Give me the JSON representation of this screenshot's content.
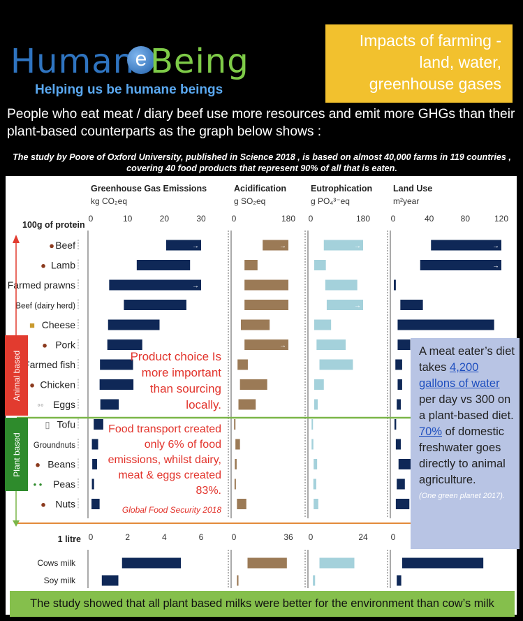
{
  "logo": {
    "word1": "Human",
    "letter": "e",
    "word2": "Being",
    "tagline": "Helping us be humane beings"
  },
  "title_box": {
    "line1": "Impacts of farming -",
    "line2": "land, water,",
    "line3": "greenhouse gases"
  },
  "intro": "People who eat meat / diary beef use more resources and emit more GHGs than their plant-based counterparts as the graph below shows :",
  "study": "The study by Poore  of Oxford University, published in Science 2018 , is based on almost 40,000 farms in 119 countries , covering 40 food products that represent 90% of all that is eaten.",
  "sides": {
    "animal": "Animal based",
    "plant": "Plant based"
  },
  "notes": {
    "product": "Product choice Is more important than sourcing locally.",
    "transport": "Food transport created only 6% of food  emissions, whilst dairy, meat & eggs created 83%.",
    "transport_source": "Global Food Security 2018"
  },
  "water_box": {
    "p1": "A meat eater’s diet takes ",
    "p1_link": "4,200 gallons of water",
    "p1_end": " per day vs 300 on a plant-based diet.",
    "p2_link": "70%",
    "p2_end": " of domestic freshwater goes directly to animal agriculture.",
    "source": "(One green planet 2017)."
  },
  "footer": "The study showed that all plant based milks were better for the environment than cow’s milk",
  "colors": {
    "ghg": "#0f2857",
    "acid": "#9b7a56",
    "eutro": "#a4d1db",
    "land": "#0f2857",
    "animal": "#e23b2f",
    "plant": "#2e8b2c",
    "title_box": "#f2c12e",
    "footer": "#85bf4c"
  },
  "chart_data": [
    {
      "type": "bar",
      "unit_label": "100g of protein",
      "categories": [
        "Beef",
        "Lamb",
        "Farmed prawns",
        "Beef (dairy herd)",
        "Cheese",
        "Pork",
        "Farmed fish",
        "Chicken",
        "Eggs",
        "Tofu",
        "Groundnuts",
        "Beans",
        "Peas",
        "Nuts"
      ],
      "groups": {
        "Animal based": [
          "Beef",
          "Lamb",
          "Farmed prawns",
          "Beef (dairy herd)",
          "Cheese",
          "Pork",
          "Farmed fish",
          "Chicken",
          "Eggs"
        ],
        "Plant based": [
          "Tofu",
          "Groundnuts",
          "Beans",
          "Peas",
          "Nuts"
        ]
      },
      "panels": [
        {
          "title": "Greenhouse Gas Emissions",
          "unit": "kg CO₂eq",
          "xlim": [
            0,
            30
          ],
          "ticks": [
            "0",
            "10",
            "20",
            "30"
          ],
          "ranges": [
            [
              20.5,
              30
            ],
            [
              12.5,
              27
            ],
            [
              5,
              30
            ],
            [
              9,
              26
            ],
            [
              4.7,
              18.7
            ],
            [
              4.5,
              14
            ],
            [
              2.5,
              11.5
            ],
            [
              2.4,
              11.6
            ],
            [
              2.6,
              7.6
            ],
            [
              0.8,
              3.4
            ],
            [
              0.3,
              2
            ],
            [
              0.4,
              1.7
            ],
            [
              0.3,
              0.9
            ],
            [
              0.2,
              2.4
            ]
          ],
          "beyond_axis": [
            "Beef",
            "Farmed prawns"
          ]
        },
        {
          "title": "Acidification",
          "unit": "g SO₂eq",
          "xlim": [
            0,
            180
          ],
          "ticks": [
            "0",
            "180"
          ],
          "ranges": [
            [
              95,
              180
            ],
            [
              35,
              78
            ],
            [
              35,
              180
            ],
            [
              35,
              180
            ],
            [
              23,
              118
            ],
            [
              35,
              180
            ],
            [
              12,
              46
            ],
            [
              20,
              110
            ],
            [
              15,
              72
            ],
            [
              0.5,
              4
            ],
            [
              5,
              20
            ],
            [
              3,
              9
            ],
            [
              2,
              6
            ],
            [
              10,
              41
            ]
          ],
          "beyond_axis": [
            "Beef",
            "Pork"
          ]
        },
        {
          "title": "Eutrophication",
          "unit": "g PO₄³⁻eq",
          "xlim": [
            0,
            180
          ],
          "ticks": [
            "0",
            "180"
          ],
          "ranges": [
            [
              45,
              180
            ],
            [
              12,
              52
            ],
            [
              50,
              160
            ],
            [
              55,
              180
            ],
            [
              12,
              70
            ],
            [
              20,
              120
            ],
            [
              30,
              145
            ],
            [
              12,
              45
            ],
            [
              12,
              24
            ],
            [
              3,
              6
            ],
            [
              3,
              9
            ],
            [
              10,
              22
            ],
            [
              9,
              19
            ],
            [
              10,
              26
            ]
          ],
          "beyond_axis": [
            "Beef",
            "Beef (dairy herd)"
          ]
        },
        {
          "title": "Land Use",
          "unit": "m²year",
          "xlim": [
            0,
            120
          ],
          "ticks": [
            "0",
            "40",
            "80",
            "120"
          ],
          "ranges": [
            [
              42,
              120
            ],
            [
              30,
              120
            ],
            [
              0.8,
              3
            ],
            [
              8,
              33
            ],
            [
              5,
              112
            ],
            [
              5,
              19
            ],
            [
              2.5,
              10
            ],
            [
              5,
              10
            ],
            [
              4,
              8.5
            ],
            [
              1.5,
              3.4
            ],
            [
              3,
              8.5
            ],
            [
              6,
              20
            ],
            [
              4,
              13
            ],
            [
              3,
              18
            ]
          ],
          "beyond_axis": [
            "Beef",
            "Lamb"
          ]
        }
      ]
    },
    {
      "type": "bar",
      "unit_label": "1 litre",
      "categories": [
        "Cows milk",
        "Soy milk"
      ],
      "panels": [
        {
          "title": "Greenhouse Gas Emissions",
          "xlim": [
            0,
            6
          ],
          "ticks": [
            "0",
            "2",
            "4",
            "6"
          ],
          "ranges": [
            [
              1.7,
              4.9
            ],
            [
              0.6,
              1.5
            ]
          ]
        },
        {
          "title": "Acidification",
          "xlim": [
            0,
            36
          ],
          "ticks": [
            "0",
            "36"
          ],
          "ranges": [
            [
              9,
              35
            ],
            [
              2,
              3
            ]
          ]
        },
        {
          "title": "Eutrophication",
          "xlim": [
            0,
            24
          ],
          "ticks": [
            "0",
            "24"
          ],
          "ranges": [
            [
              4,
              20
            ],
            [
              1,
              2
            ]
          ]
        },
        {
          "title": "Land Use",
          "xlim": [
            0,
            12
          ],
          "ticks": [
            "0"
          ],
          "ranges": [
            [
              1,
              10
            ],
            [
              0.4,
              0.9
            ]
          ]
        }
      ]
    }
  ]
}
